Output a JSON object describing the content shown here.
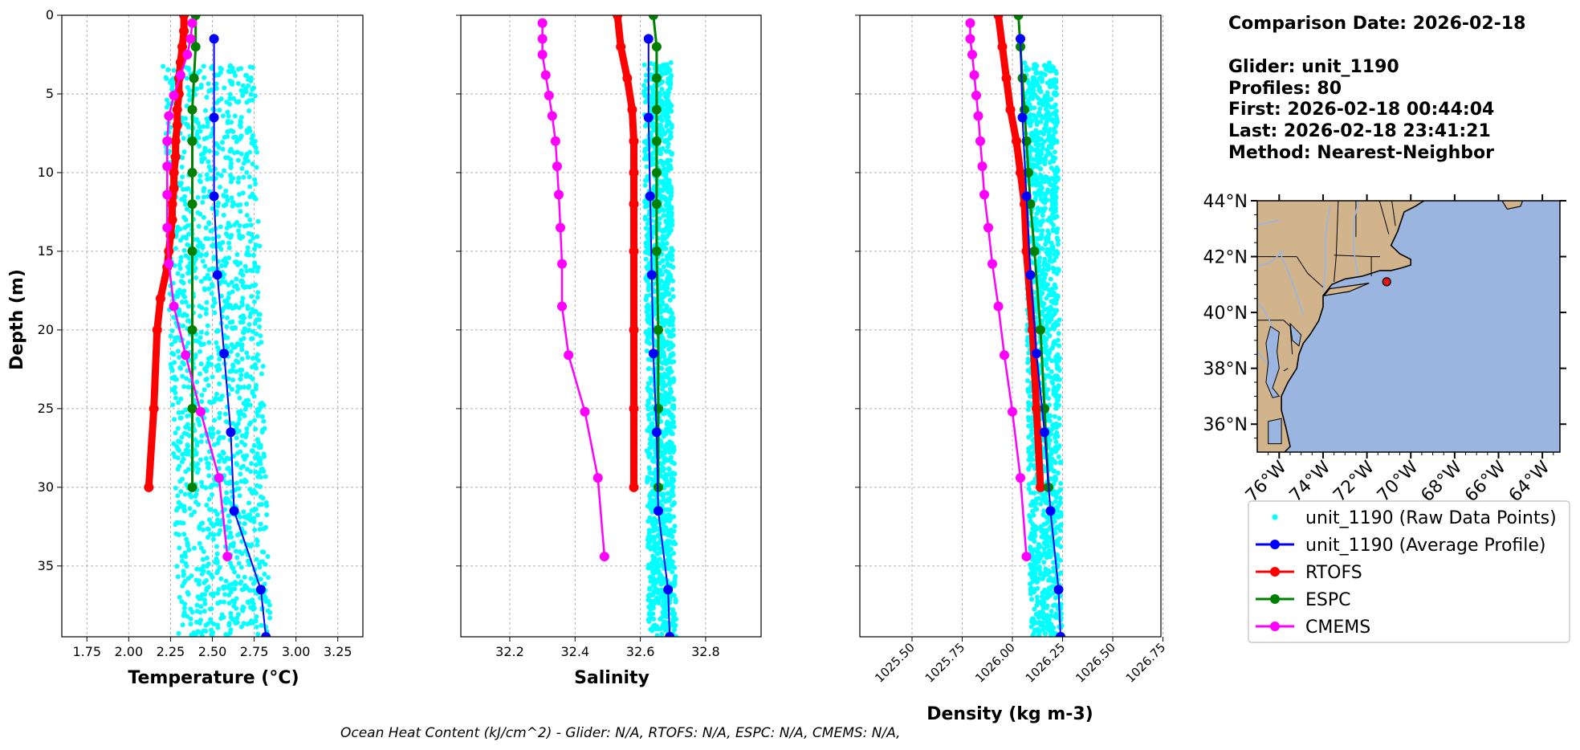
{
  "info": {
    "comparison_date": "Comparison Date: 2026-02-18",
    "glider": "Glider: unit_1190",
    "profiles": "Profiles: 80",
    "first": "First: 2026-02-18 00:44:04",
    "last": "Last: 2026-02-18 23:41:21",
    "method": "Method: Nearest-Neighbor"
  },
  "footer": "Ocean Heat Content (kJ/cm^2) - Glider: N/A,  RTOFS: N/A,  ESPC: N/A,  CMEMS: N/A,",
  "legend": {
    "raw": "unit_1190 (Raw Data Points)",
    "avg": "unit_1190 (Average Profile)",
    "rtofs": "RTOFS",
    "espc": "ESPC",
    "cmems": "CMEMS"
  },
  "colors": {
    "raw": "#00ffff",
    "avg": "#0000ff",
    "rtofs": "#ff0000",
    "espc": "#008000",
    "cmems": "#ff00ff",
    "land": "#d2b48c",
    "ocean": "#9ab5e0",
    "grid": "#b0b0b0"
  },
  "map": {
    "lat_ticks": [
      "44°N",
      "42°N",
      "40°N",
      "38°N",
      "36°N"
    ],
    "lon_ticks": [
      "76°W",
      "74°W",
      "72°W",
      "70°W",
      "68°W",
      "66°W",
      "64°W"
    ],
    "extent": {
      "lon": [
        -77.0,
        -63.2
      ],
      "lat": [
        35.0,
        44.0
      ]
    },
    "glider_position": {
      "lon": -71.1,
      "lat": 41.1
    }
  },
  "chart_data": [
    {
      "type": "line",
      "xlabel": "Temperature (°C)",
      "ylabel": "Depth (m)",
      "xlim": [
        1.6,
        3.4
      ],
      "ylim": [
        39.5,
        0
      ],
      "x_ticks": [
        "1.75",
        "2.00",
        "2.25",
        "2.50",
        "2.75",
        "3.00",
        "3.25"
      ],
      "y_ticks": [
        "0",
        "5",
        "10",
        "15",
        "20",
        "25",
        "30",
        "35"
      ],
      "grid": true,
      "raw_points": {
        "x_range": [
          2.2,
          2.85
        ],
        "depth_range": [
          3,
          39.5
        ]
      },
      "series": [
        {
          "key": "rtofs",
          "depth": [
            0,
            1,
            2,
            3,
            4,
            5,
            6,
            7,
            8,
            9,
            10,
            11,
            12,
            13,
            14,
            15,
            16,
            18,
            20,
            25,
            30
          ],
          "values": [
            2.33,
            2.33,
            2.32,
            2.31,
            2.3,
            2.3,
            2.29,
            2.29,
            2.28,
            2.28,
            2.27,
            2.27,
            2.26,
            2.26,
            2.25,
            2.24,
            2.23,
            2.19,
            2.17,
            2.15,
            2.12
          ]
        },
        {
          "key": "espc",
          "depth": [
            0,
            2,
            4,
            6,
            8,
            10,
            12,
            15,
            20,
            25,
            30
          ],
          "values": [
            2.4,
            2.4,
            2.39,
            2.38,
            2.38,
            2.38,
            2.38,
            2.38,
            2.38,
            2.38,
            2.38
          ]
        },
        {
          "key": "cmems",
          "depth": [
            0.5,
            1.5,
            2.5,
            3.8,
            5.1,
            6.4,
            8.0,
            9.6,
            11.4,
            13.5,
            15.8,
            18.5,
            21.6,
            25.2,
            29.4,
            34.4
          ],
          "values": [
            2.38,
            2.37,
            2.35,
            2.31,
            2.27,
            2.24,
            2.23,
            2.23,
            2.23,
            2.23,
            2.24,
            2.27,
            2.34,
            2.43,
            2.54,
            2.59
          ]
        },
        {
          "key": "avg",
          "depth": [
            1.5,
            6.5,
            11.5,
            16.5,
            21.5,
            26.5,
            31.5,
            36.5,
            39.5
          ],
          "values": [
            2.51,
            2.51,
            2.51,
            2.53,
            2.57,
            2.61,
            2.63,
            2.79,
            2.82
          ]
        }
      ]
    },
    {
      "type": "line",
      "xlabel": "Salinity",
      "xlim": [
        32.05,
        32.97
      ],
      "ylim": [
        39.5,
        0
      ],
      "x_ticks": [
        "32.2",
        "32.4",
        "32.6",
        "32.8"
      ],
      "grid": true,
      "raw_points": {
        "x_range": [
          32.61,
          32.71
        ],
        "depth_range": [
          3,
          39.5
        ]
      },
      "series": [
        {
          "key": "rtofs",
          "depth": [
            0,
            2,
            4,
            6,
            8,
            10,
            12,
            15,
            20,
            25,
            30
          ],
          "values": [
            32.53,
            32.54,
            32.56,
            32.575,
            32.58,
            32.58,
            32.58,
            32.58,
            32.58,
            32.58,
            32.58
          ]
        },
        {
          "key": "espc",
          "depth": [
            0,
            2,
            4,
            6,
            8,
            10,
            12,
            15,
            20,
            25,
            30
          ],
          "values": [
            32.64,
            32.65,
            32.65,
            32.65,
            32.65,
            32.65,
            32.65,
            32.65,
            32.655,
            32.655,
            32.655
          ]
        },
        {
          "key": "cmems",
          "depth": [
            0.5,
            1.5,
            2.5,
            3.8,
            5.1,
            6.4,
            8.0,
            9.6,
            11.4,
            13.5,
            15.8,
            18.5,
            21.6,
            25.2,
            29.4,
            34.4
          ],
          "values": [
            32.3,
            32.3,
            32.3,
            32.31,
            32.32,
            32.33,
            32.34,
            32.345,
            32.35,
            32.355,
            32.36,
            32.36,
            32.38,
            32.43,
            32.47,
            32.49
          ]
        },
        {
          "key": "avg",
          "depth": [
            1.5,
            6.5,
            11.5,
            16.5,
            21.5,
            26.5,
            31.5,
            36.5,
            39.5
          ],
          "values": [
            32.625,
            32.625,
            32.63,
            32.635,
            32.64,
            32.65,
            32.655,
            32.685,
            32.69
          ]
        }
      ]
    },
    {
      "type": "line",
      "xlabel": "Density (kg m-3)",
      "xlim": [
        1025.24,
        1026.74
      ],
      "ylim": [
        39.5,
        0
      ],
      "x_ticks": [
        "1025.50",
        "1025.75",
        "1026.00",
        "1026.25",
        "1026.50",
        "1026.75"
      ],
      "grid": true,
      "raw_points": {
        "x_range": [
          1026.06,
          1026.25
        ],
        "depth_range": [
          3,
          39.5
        ]
      },
      "series": [
        {
          "key": "rtofs",
          "depth": [
            0,
            2,
            4,
            6,
            8,
            10,
            12,
            15,
            20,
            25,
            30
          ],
          "values": [
            1025.93,
            1025.95,
            1025.97,
            1025.99,
            1026.02,
            1026.04,
            1026.06,
            1026.07,
            1026.1,
            1026.12,
            1026.14
          ]
        },
        {
          "key": "espc",
          "depth": [
            0,
            2,
            4,
            6,
            8,
            10,
            12,
            15,
            20,
            25,
            30
          ],
          "values": [
            1026.03,
            1026.04,
            1026.05,
            1026.06,
            1026.07,
            1026.08,
            1026.09,
            1026.11,
            1026.14,
            1026.16,
            1026.18
          ]
        },
        {
          "key": "cmems",
          "depth": [
            0.5,
            1.5,
            2.5,
            3.8,
            5.1,
            6.4,
            8.0,
            9.6,
            11.4,
            13.5,
            15.8,
            18.5,
            21.6,
            25.2,
            29.4,
            34.4
          ],
          "values": [
            1025.79,
            1025.79,
            1025.8,
            1025.81,
            1025.82,
            1025.83,
            1025.84,
            1025.85,
            1025.86,
            1025.88,
            1025.9,
            1025.93,
            1025.96,
            1026.0,
            1026.04,
            1026.07
          ]
        },
        {
          "key": "avg",
          "depth": [
            1.5,
            6.5,
            11.5,
            16.5,
            21.5,
            26.5,
            31.5,
            36.5,
            39.5
          ],
          "values": [
            1026.04,
            1026.05,
            1026.07,
            1026.09,
            1026.12,
            1026.16,
            1026.19,
            1026.23,
            1026.24
          ]
        }
      ]
    }
  ]
}
